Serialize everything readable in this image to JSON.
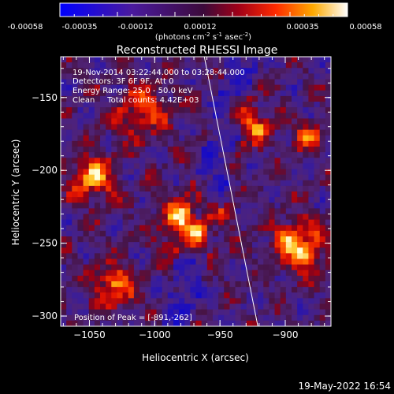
{
  "colorbar": {
    "ticks": [
      "-0.00058",
      "-0.00035",
      "-0.00012",
      "0.00012",
      "0.00035",
      "0.00058"
    ],
    "units_text": "(photons cm",
    "units_exp1": "-2",
    "units_mid": " s",
    "units_exp2": "-1",
    "units_end": " asec",
    "units_exp3": "-2",
    "units_close": ")"
  },
  "chart_data": {
    "type": "heatmap",
    "title": "Reconstructed RHESSI Image",
    "xlabel": "Heliocentric X (arcsec)",
    "ylabel": "Heliocentric Y (arcsec)",
    "xlim": [
      -1072,
      -865
    ],
    "ylim": [
      -307,
      -122
    ],
    "x_ticks": [
      -1050,
      -1000,
      -950,
      -900
    ],
    "y_ticks": [
      -300,
      -250,
      -200,
      -150
    ],
    "limb_line": {
      "x1": -962,
      "y1": -122,
      "x2": -921,
      "y2": -307
    },
    "peak_position": [
      -891,
      -262
    ],
    "info": {
      "line1": "19-Nov-2014 03:22:44.000 to 03:28:44.000",
      "line2": "Detectors: 3F 6F 9F, Att 0",
      "line3": "Energy Range: 25.0 - 50.0 keV",
      "line4": "Clean     Total counts: 4.42E+03"
    },
    "peak_label": "Position of Peak = [-891,-262]"
  },
  "footer": {
    "timestamp": "19-May-2022 16:54"
  }
}
